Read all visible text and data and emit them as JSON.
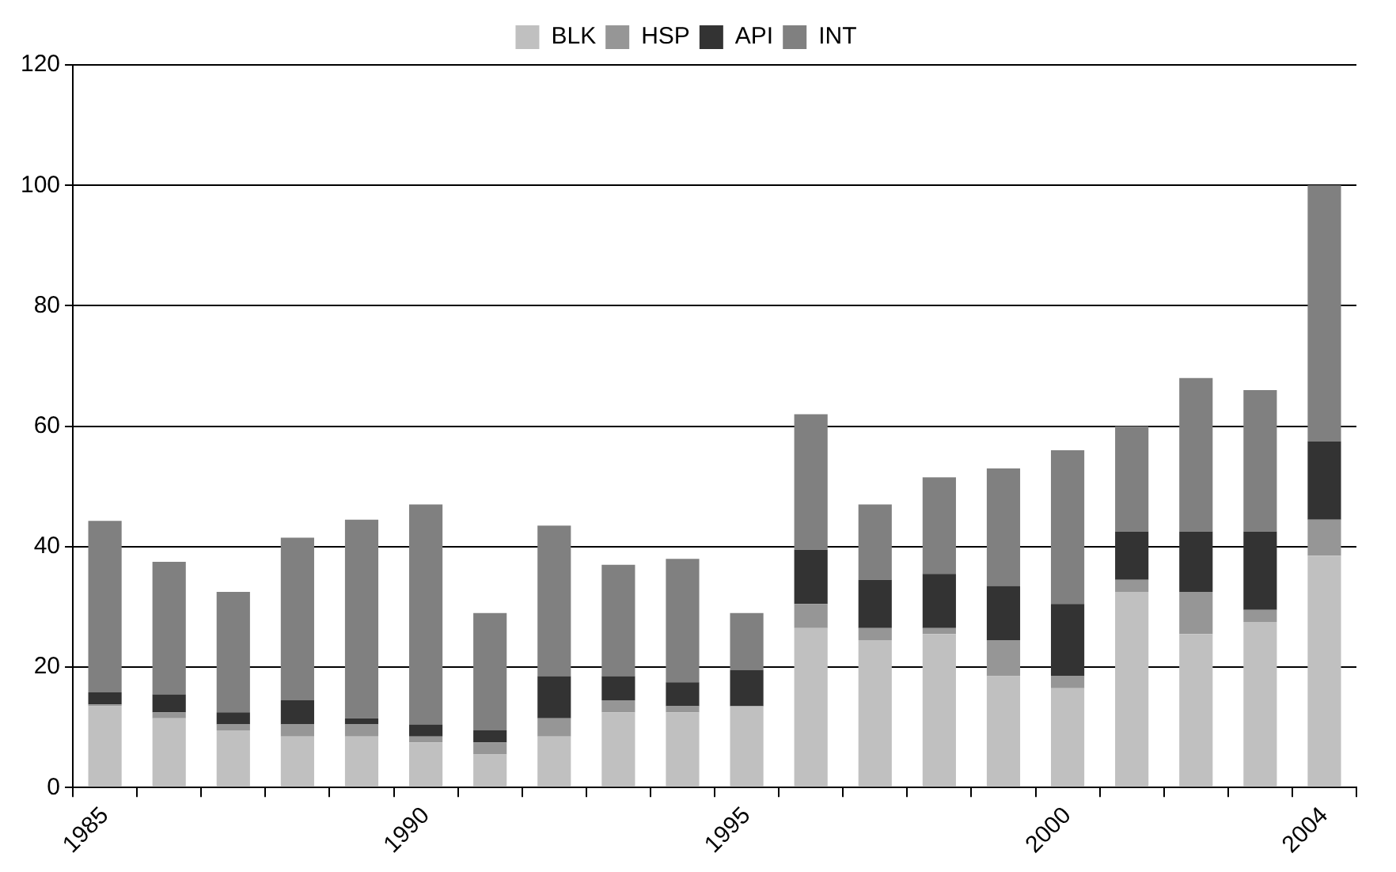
{
  "chart_data": {
    "type": "bar",
    "stacked": true,
    "categories": [
      "1985",
      null,
      null,
      null,
      null,
      "1990",
      null,
      null,
      null,
      null,
      "1995",
      null,
      null,
      null,
      null,
      "2000",
      null,
      null,
      null,
      "2004"
    ],
    "series": [
      {
        "name": "BLK",
        "color": "#c0c0c0",
        "values": [
          13.5,
          11.5,
          9.5,
          8.5,
          8.5,
          7.5,
          5.5,
          8.5,
          12.5,
          12.5,
          13.5,
          26.5,
          24.5,
          25.5,
          18.5,
          16.5,
          32.5,
          25.5,
          27.5,
          38.5
        ]
      },
      {
        "name": "HSP",
        "color": "#969696",
        "values": [
          0.3,
          1,
          1,
          2,
          2,
          1,
          2,
          3,
          2,
          1,
          0,
          4,
          2,
          1,
          6,
          2,
          2,
          7,
          2,
          6
        ]
      },
      {
        "name": "API",
        "color": "#333333",
        "values": [
          2,
          3,
          2,
          4,
          1,
          2,
          2,
          7,
          4,
          4,
          6,
          9,
          8,
          9,
          9,
          12,
          8,
          10,
          13,
          13
        ]
      },
      {
        "name": "INT",
        "color": "#808080",
        "values": [
          28.5,
          22,
          20,
          27,
          33,
          36.5,
          19.5,
          25,
          18.5,
          20.5,
          9.5,
          22.5,
          12.5,
          16,
          19.5,
          25.5,
          17.5,
          25.5,
          23.5,
          42.5
        ]
      }
    ],
    "ylim": [
      0,
      120
    ],
    "yticks": [
      0,
      20,
      40,
      60,
      80,
      100,
      120
    ],
    "grid": "y",
    "legend": "top"
  }
}
